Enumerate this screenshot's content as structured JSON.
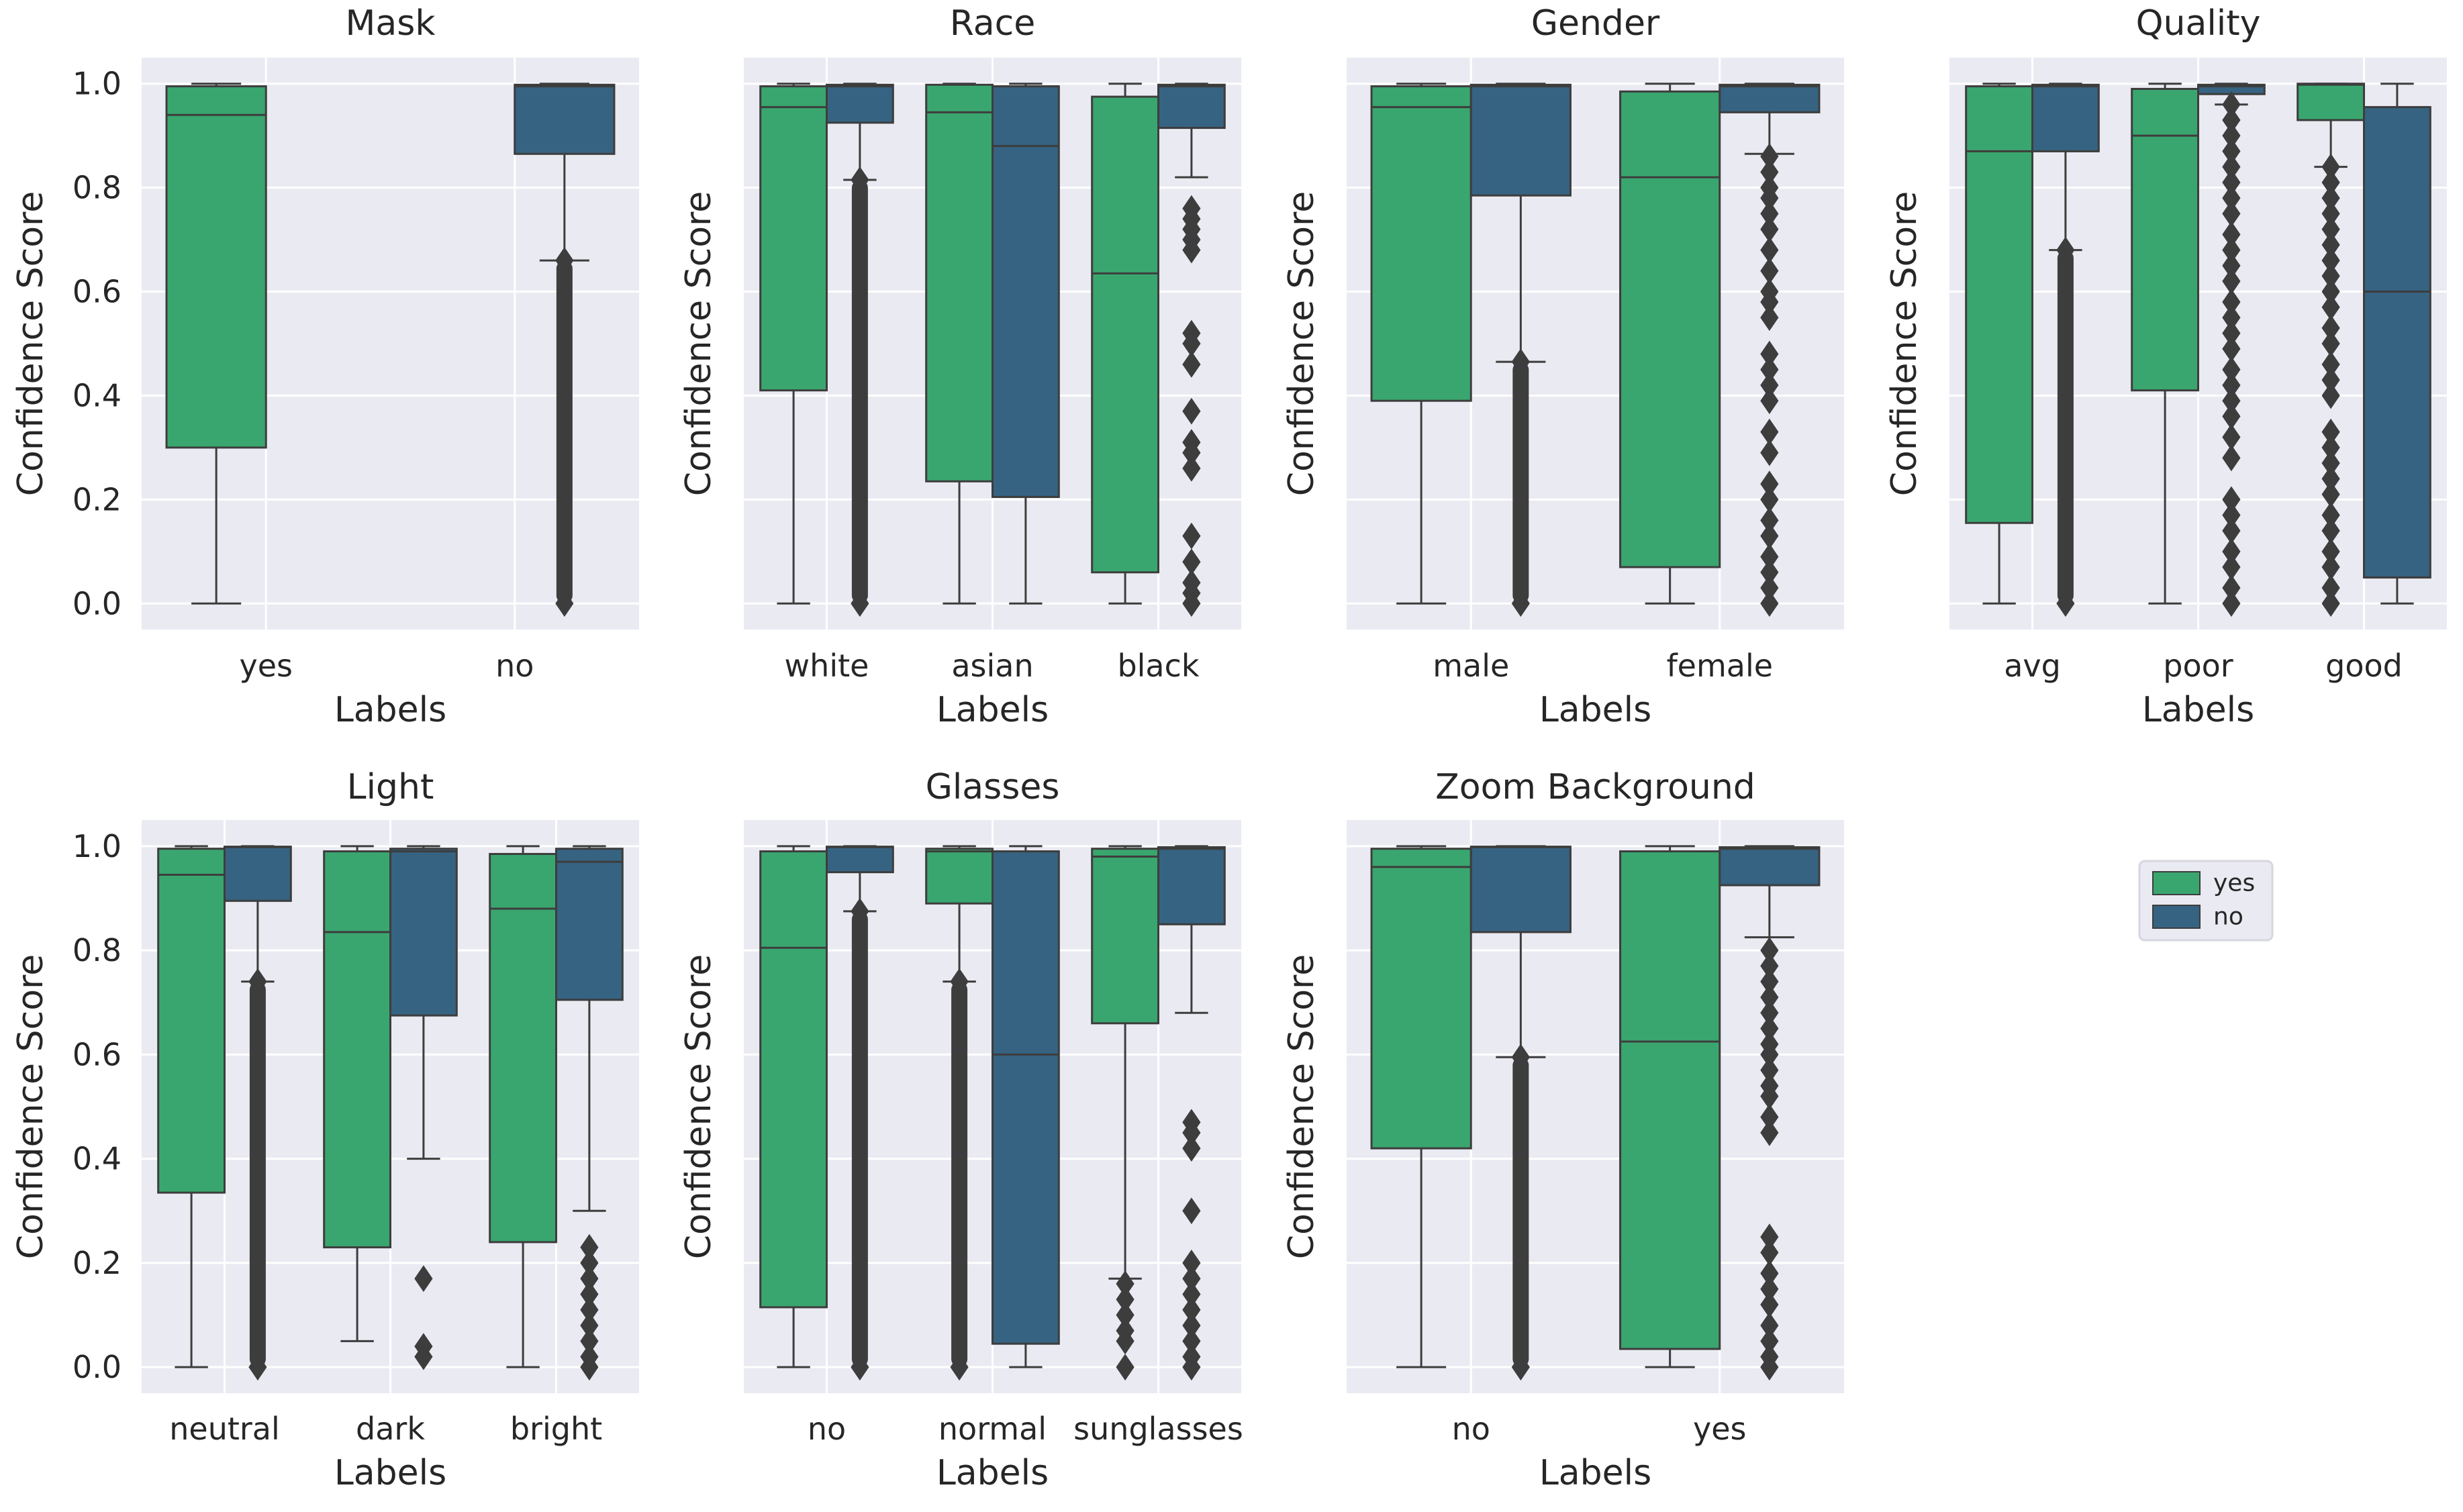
{
  "colors": {
    "yes": "#3aa66f",
    "no": "#366382",
    "line": "#3d3d3d",
    "background": "#eaeaf2",
    "grid": "#ffffff"
  },
  "legend": {
    "title": "",
    "entries": [
      {
        "label": "yes",
        "color": "#3aa66f"
      },
      {
        "label": "no",
        "color": "#366382"
      }
    ],
    "placement": "right of bottom row"
  },
  "chart_data": [
    {
      "type": "box",
      "title": "Mask",
      "xlabel": "Labels",
      "ylabel": "Confidence Score",
      "ylim": [
        -0.05,
        1.05
      ],
      "yticks": [
        "0.0",
        "0.2",
        "0.4",
        "0.6",
        "0.8",
        "1.0"
      ],
      "categories": [
        "yes",
        "no"
      ],
      "boxes": [
        {
          "category": "yes",
          "hue": "yes",
          "q1": 0.3,
          "median": 0.94,
          "q3": 0.995,
          "whisker_low": 0.0,
          "whisker_high": 1.0,
          "outliers": []
        },
        {
          "category": "no",
          "hue": "no",
          "q1": 0.865,
          "median": 0.995,
          "q3": 0.998,
          "whisker_low": 0.66,
          "whisker_high": 1.0,
          "outlier_range": [
            0.0,
            0.66
          ]
        }
      ]
    },
    {
      "type": "box",
      "title": "Race",
      "xlabel": "Labels",
      "ylabel": "Confidence Score",
      "ylim": [
        -0.05,
        1.05
      ],
      "yticks": [],
      "categories": [
        "white",
        "asian",
        "black"
      ],
      "boxes": [
        {
          "category": "white",
          "hue": "yes",
          "q1": 0.41,
          "median": 0.955,
          "q3": 0.995,
          "whisker_low": 0.0,
          "whisker_high": 1.0,
          "outliers": []
        },
        {
          "category": "white",
          "hue": "no",
          "q1": 0.925,
          "median": 0.995,
          "q3": 0.998,
          "whisker_low": 0.815,
          "whisker_high": 1.0,
          "outlier_range": [
            0.0,
            0.815
          ]
        },
        {
          "category": "asian",
          "hue": "yes",
          "q1": 0.235,
          "median": 0.945,
          "q3": 0.998,
          "whisker_low": 0.0,
          "whisker_high": 1.0,
          "outliers": []
        },
        {
          "category": "asian",
          "hue": "no",
          "q1": 0.205,
          "median": 0.88,
          "q3": 0.995,
          "whisker_low": 0.0,
          "whisker_high": 1.0,
          "outliers": []
        },
        {
          "category": "black",
          "hue": "yes",
          "q1": 0.06,
          "median": 0.635,
          "q3": 0.975,
          "whisker_low": 0.0,
          "whisker_high": 1.0,
          "outliers": []
        },
        {
          "category": "black",
          "hue": "no",
          "q1": 0.915,
          "median": 0.995,
          "q3": 0.998,
          "whisker_low": 0.82,
          "whisker_high": 1.0,
          "outliers": [
            0.76,
            0.74,
            0.72,
            0.7,
            0.68,
            0.52,
            0.5,
            0.46,
            0.37,
            0.31,
            0.29,
            0.26,
            0.13,
            0.08,
            0.04,
            0.02,
            0.0
          ]
        }
      ]
    },
    {
      "type": "box",
      "title": "Gender",
      "xlabel": "Labels",
      "ylabel": "Confidence Score",
      "ylim": [
        -0.05,
        1.05
      ],
      "yticks": [],
      "categories": [
        "male",
        "female"
      ],
      "boxes": [
        {
          "category": "male",
          "hue": "yes",
          "q1": 0.39,
          "median": 0.955,
          "q3": 0.995,
          "whisker_low": 0.0,
          "whisker_high": 1.0,
          "outliers": []
        },
        {
          "category": "male",
          "hue": "no",
          "q1": 0.785,
          "median": 0.995,
          "q3": 0.998,
          "whisker_low": 0.465,
          "whisker_high": 1.0,
          "outlier_range": [
            0.0,
            0.465
          ]
        },
        {
          "category": "female",
          "hue": "yes",
          "q1": 0.07,
          "median": 0.82,
          "q3": 0.985,
          "whisker_low": 0.0,
          "whisker_high": 1.0,
          "outliers": []
        },
        {
          "category": "female",
          "hue": "no",
          "q1": 0.945,
          "median": 0.995,
          "q3": 0.998,
          "whisker_low": 0.865,
          "whisker_high": 1.0,
          "outliers": [
            0.86,
            0.83,
            0.8,
            0.78,
            0.75,
            0.72,
            0.68,
            0.64,
            0.6,
            0.58,
            0.55,
            0.48,
            0.45,
            0.42,
            0.39,
            0.33,
            0.29,
            0.23,
            0.2,
            0.16,
            0.13,
            0.09,
            0.06,
            0.03,
            0.0
          ]
        }
      ]
    },
    {
      "type": "box",
      "title": "Quality",
      "xlabel": "Labels",
      "ylabel": "Confidence Score",
      "ylim": [
        -0.05,
        1.05
      ],
      "yticks": [],
      "categories": [
        "avg",
        "poor",
        "good"
      ],
      "boxes": [
        {
          "category": "avg",
          "hue": "yes",
          "q1": 0.155,
          "median": 0.87,
          "q3": 0.995,
          "whisker_low": 0.0,
          "whisker_high": 1.0,
          "outliers": []
        },
        {
          "category": "avg",
          "hue": "no",
          "q1": 0.87,
          "median": 0.995,
          "q3": 0.998,
          "whisker_low": 0.68,
          "whisker_high": 1.0,
          "outlier_range": [
            0.0,
            0.68
          ]
        },
        {
          "category": "poor",
          "hue": "yes",
          "q1": 0.41,
          "median": 0.9,
          "q3": 0.99,
          "whisker_low": 0.0,
          "whisker_high": 1.0,
          "outliers": []
        },
        {
          "category": "poor",
          "hue": "no",
          "q1": 0.98,
          "median": 0.995,
          "q3": 0.998,
          "whisker_low": 0.96,
          "whisker_high": 1.0,
          "outliers": [
            0.96,
            0.93,
            0.9,
            0.87,
            0.84,
            0.81,
            0.78,
            0.75,
            0.71,
            0.68,
            0.65,
            0.62,
            0.58,
            0.55,
            0.52,
            0.49,
            0.45,
            0.42,
            0.39,
            0.36,
            0.32,
            0.28,
            0.2,
            0.17,
            0.14,
            0.1,
            0.07,
            0.03,
            0.0
          ]
        },
        {
          "category": "good",
          "hue": "yes",
          "q1": 0.93,
          "median": 0.998,
          "q3": 1.0,
          "whisker_low": 0.84,
          "whisker_high": 1.0,
          "outliers": [
            0.84,
            0.81,
            0.78,
            0.75,
            0.72,
            0.69,
            0.66,
            0.63,
            0.6,
            0.57,
            0.53,
            0.5,
            0.46,
            0.43,
            0.4,
            0.33,
            0.3,
            0.27,
            0.24,
            0.21,
            0.17,
            0.14,
            0.1,
            0.07,
            0.03,
            0.0
          ]
        },
        {
          "category": "good",
          "hue": "no",
          "q1": 0.05,
          "median": 0.6,
          "q3": 0.955,
          "whisker_low": 0.0,
          "whisker_high": 1.0,
          "outliers": []
        }
      ]
    },
    {
      "type": "box",
      "title": "Light",
      "xlabel": "Labels",
      "ylabel": "Confidence Score",
      "ylim": [
        -0.05,
        1.05
      ],
      "yticks": [
        "0.0",
        "0.2",
        "0.4",
        "0.6",
        "0.8",
        "1.0"
      ],
      "categories": [
        "neutral",
        "dark",
        "bright"
      ],
      "boxes": [
        {
          "category": "neutral",
          "hue": "yes",
          "q1": 0.335,
          "median": 0.945,
          "q3": 0.995,
          "whisker_low": 0.0,
          "whisker_high": 1.0,
          "outliers": []
        },
        {
          "category": "neutral",
          "hue": "no",
          "q1": 0.895,
          "median": 0.998,
          "q3": 0.999,
          "whisker_low": 0.74,
          "whisker_high": 1.0,
          "outlier_range": [
            0.0,
            0.74
          ]
        },
        {
          "category": "dark",
          "hue": "yes",
          "q1": 0.23,
          "median": 0.835,
          "q3": 0.99,
          "whisker_low": 0.05,
          "whisker_high": 1.0,
          "outliers": []
        },
        {
          "category": "dark",
          "hue": "no",
          "q1": 0.675,
          "median": 0.99,
          "q3": 0.995,
          "whisker_low": 0.4,
          "whisker_high": 1.0,
          "outliers": [
            0.17,
            0.04,
            0.02
          ]
        },
        {
          "category": "bright",
          "hue": "yes",
          "q1": 0.24,
          "median": 0.88,
          "q3": 0.985,
          "whisker_low": 0.0,
          "whisker_high": 1.0,
          "outliers": []
        },
        {
          "category": "bright",
          "hue": "no",
          "q1": 0.705,
          "median": 0.97,
          "q3": 0.995,
          "whisker_low": 0.3,
          "whisker_high": 1.0,
          "outliers": [
            0.23,
            0.2,
            0.17,
            0.14,
            0.11,
            0.08,
            0.05,
            0.02,
            0.0
          ]
        }
      ]
    },
    {
      "type": "box",
      "title": "Glasses",
      "xlabel": "Labels",
      "ylabel": "Confidence Score",
      "ylim": [
        -0.05,
        1.05
      ],
      "yticks": [],
      "categories": [
        "no",
        "normal",
        "sunglasses"
      ],
      "boxes": [
        {
          "category": "no",
          "hue": "yes",
          "q1": 0.115,
          "median": 0.805,
          "q3": 0.99,
          "whisker_low": 0.0,
          "whisker_high": 1.0,
          "outliers": []
        },
        {
          "category": "no",
          "hue": "no",
          "q1": 0.95,
          "median": 0.998,
          "q3": 0.999,
          "whisker_low": 0.875,
          "whisker_high": 1.0,
          "outlier_range": [
            0.0,
            0.875
          ]
        },
        {
          "category": "normal",
          "hue": "yes",
          "q1": 0.89,
          "median": 0.99,
          "q3": 0.995,
          "whisker_low": 0.74,
          "whisker_high": 1.0,
          "outlier_range": [
            0.0,
            0.74
          ]
        },
        {
          "category": "normal",
          "hue": "no",
          "q1": 0.045,
          "median": 0.6,
          "q3": 0.99,
          "whisker_low": 0.0,
          "whisker_high": 1.0,
          "outliers": []
        },
        {
          "category": "sunglasses",
          "hue": "yes",
          "q1": 0.66,
          "median": 0.98,
          "q3": 0.995,
          "whisker_low": 0.17,
          "whisker_high": 1.0,
          "outliers": [
            0.16,
            0.13,
            0.1,
            0.07,
            0.05,
            0.0
          ]
        },
        {
          "category": "sunglasses",
          "hue": "no",
          "q1": 0.85,
          "median": 0.995,
          "q3": 0.998,
          "whisker_low": 0.68,
          "whisker_high": 1.0,
          "outliers": [
            0.47,
            0.45,
            0.42,
            0.3,
            0.2,
            0.17,
            0.14,
            0.11,
            0.08,
            0.05,
            0.02,
            0.0
          ]
        }
      ]
    },
    {
      "type": "box",
      "title": "Zoom Background",
      "xlabel": "Labels",
      "ylabel": "Confidence Score",
      "ylim": [
        -0.05,
        1.05
      ],
      "yticks": [],
      "categories": [
        "no",
        "yes"
      ],
      "boxes": [
        {
          "category": "no",
          "hue": "yes",
          "q1": 0.42,
          "median": 0.96,
          "q3": 0.995,
          "whisker_low": 0.0,
          "whisker_high": 1.0,
          "outliers": []
        },
        {
          "category": "no",
          "hue": "no",
          "q1": 0.835,
          "median": 0.998,
          "q3": 0.999,
          "whisker_low": 0.595,
          "whisker_high": 1.0,
          "outlier_range": [
            0.0,
            0.595
          ]
        },
        {
          "category": "yes",
          "hue": "yes",
          "q1": 0.035,
          "median": 0.625,
          "q3": 0.99,
          "whisker_low": 0.0,
          "whisker_high": 1.0,
          "outliers": []
        },
        {
          "category": "yes",
          "hue": "no",
          "q1": 0.925,
          "median": 0.995,
          "q3": 0.998,
          "whisker_low": 0.825,
          "whisker_high": 1.0,
          "outliers": [
            0.8,
            0.77,
            0.74,
            0.71,
            0.68,
            0.65,
            0.62,
            0.6,
            0.57,
            0.54,
            0.52,
            0.48,
            0.45,
            0.25,
            0.22,
            0.18,
            0.15,
            0.12,
            0.08,
            0.05,
            0.02,
            0.0
          ]
        }
      ]
    }
  ]
}
